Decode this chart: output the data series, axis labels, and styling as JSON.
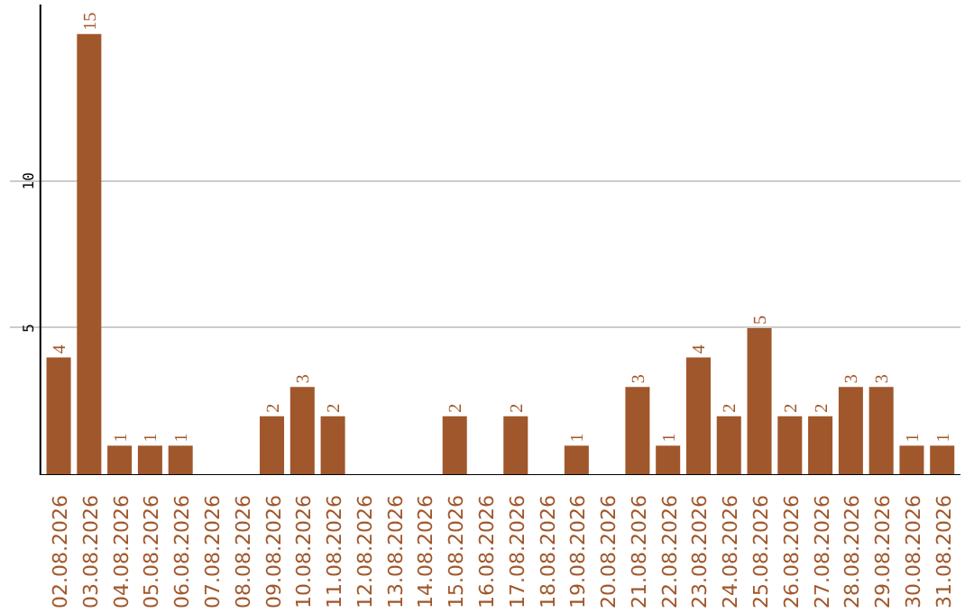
{
  "chart_data": {
    "type": "bar",
    "categories": [
      "02.08.2026",
      "03.08.2026",
      "04.08.2026",
      "05.08.2026",
      "06.08.2026",
      "07.08.2026",
      "08.08.2026",
      "09.08.2026",
      "10.08.2026",
      "11.08.2026",
      "12.08.2026",
      "13.08.2026",
      "14.08.2026",
      "15.08.2026",
      "16.08.2026",
      "17.08.2026",
      "18.08.2026",
      "19.08.2026",
      "20.08.2026",
      "21.08.2026",
      "22.08.2026",
      "23.08.2026",
      "24.08.2026",
      "25.08.2026",
      "26.08.2026",
      "27.08.2026",
      "28.08.2026",
      "29.08.2026",
      "30.08.2026",
      "31.08.2026"
    ],
    "values": [
      4,
      15,
      1,
      1,
      1,
      0,
      0,
      2,
      3,
      2,
      0,
      0,
      0,
      2,
      0,
      2,
      0,
      1,
      0,
      3,
      1,
      4,
      2,
      5,
      2,
      2,
      3,
      3,
      1,
      1
    ],
    "value_labels": [
      "4",
      "15",
      "1",
      "1",
      "1",
      null,
      null,
      "2",
      "3",
      "2",
      null,
      null,
      null,
      "2",
      null,
      "2",
      null,
      "1",
      null,
      "3",
      "1",
      "4",
      "2",
      "5",
      "2",
      "2",
      "3",
      "3",
      "1",
      "1"
    ],
    "color": "#a0572b",
    "ylim": [
      0,
      16
    ],
    "yticks": [
      5,
      10
    ],
    "grid": "y"
  }
}
